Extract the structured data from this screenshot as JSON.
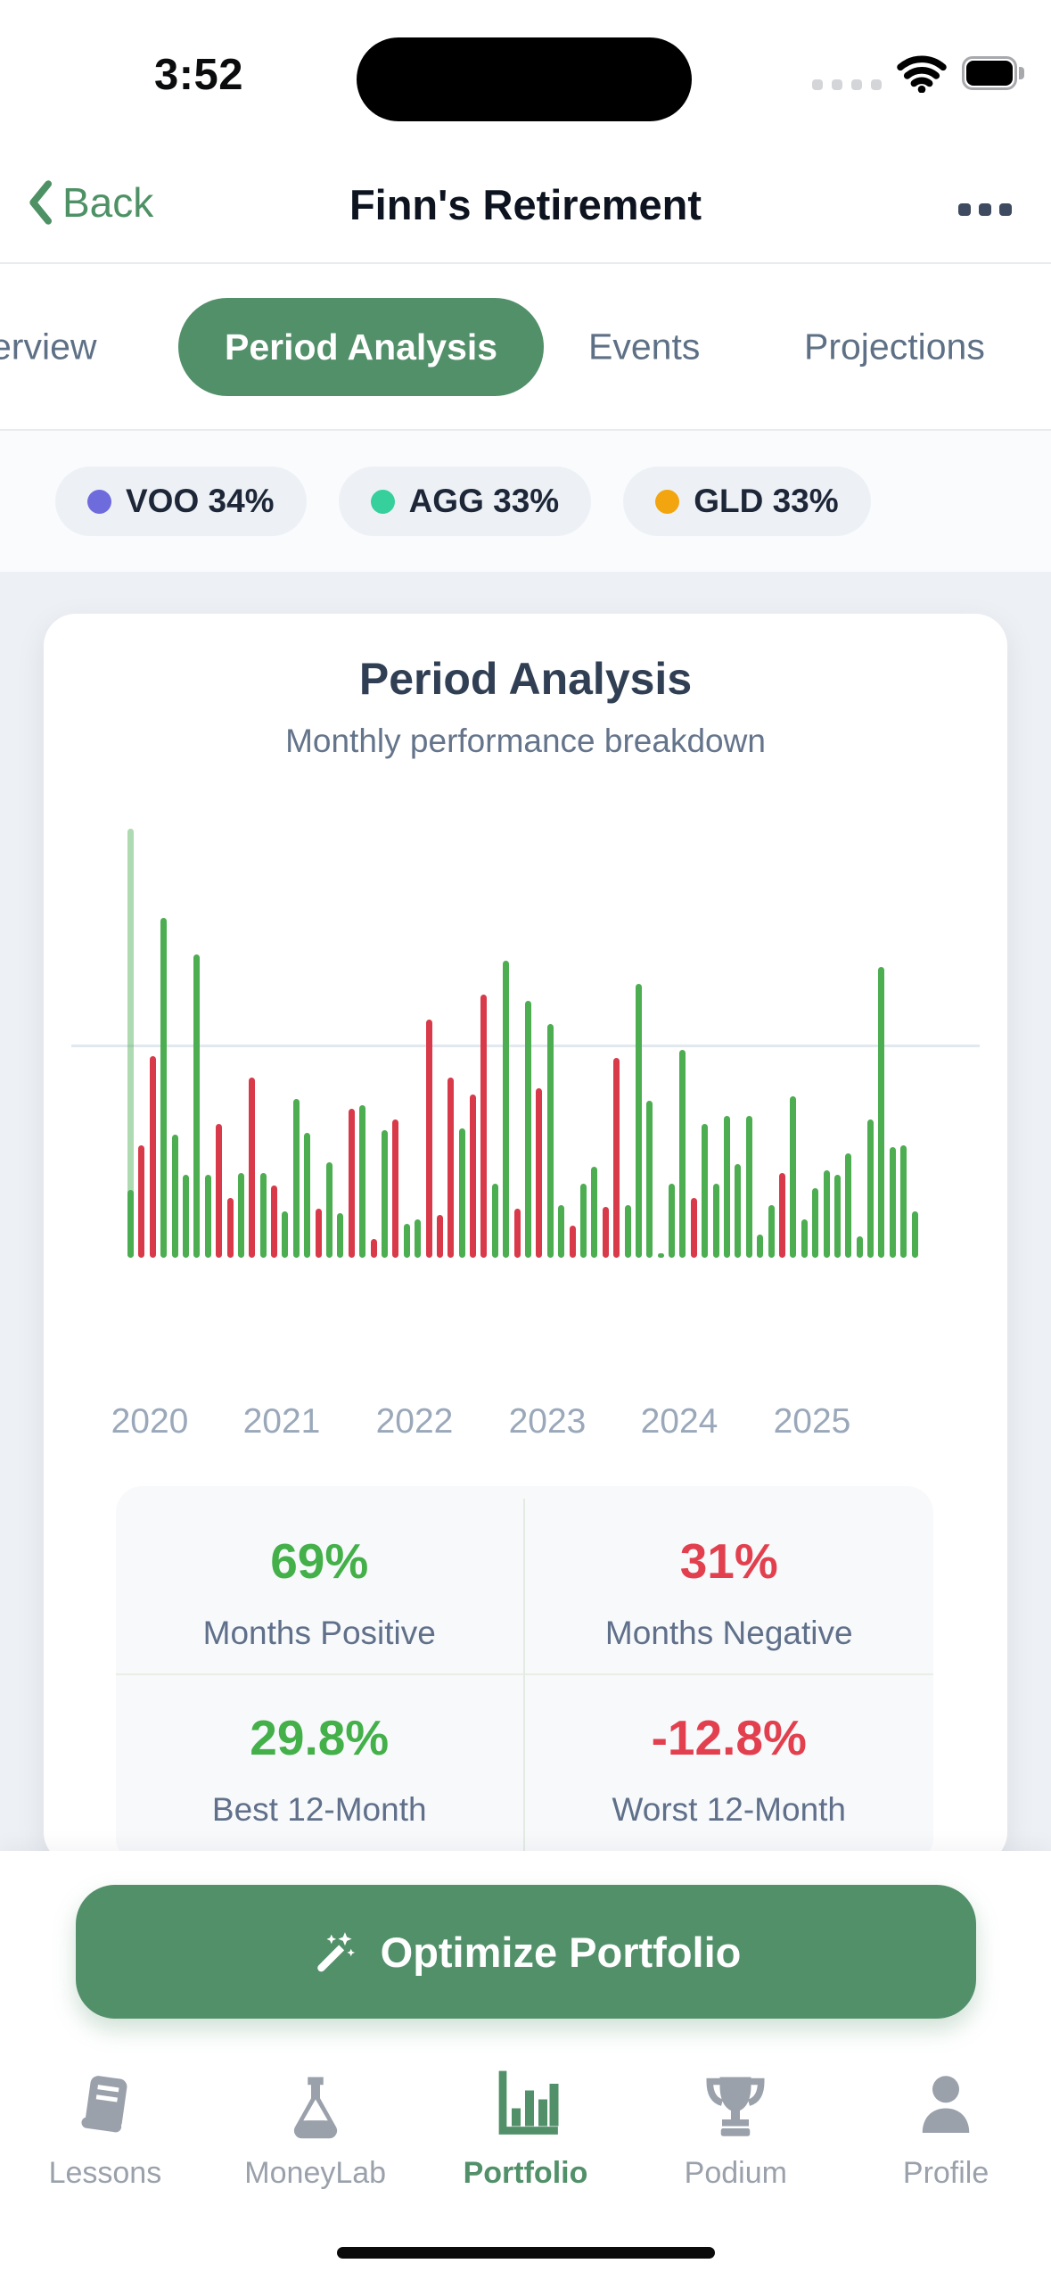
{
  "status_bar": {
    "time": "3:52",
    "cellular_dots": 4
  },
  "nav_bar": {
    "back_label": "Back",
    "title": "Finn's Retirement"
  },
  "tabs": [
    {
      "label": "erview",
      "active": false
    },
    {
      "label": "Period Analysis",
      "active": true
    },
    {
      "label": "Events",
      "active": false
    },
    {
      "label": "Projections",
      "active": false
    }
  ],
  "legend": [
    {
      "label": "VOO 34%",
      "color": "#6e6bdc"
    },
    {
      "label": "AGG 33%",
      "color": "#35d09b"
    },
    {
      "label": "GLD 33%",
      "color": "#f2a50e"
    }
  ],
  "chart_data": {
    "type": "bar",
    "title": "Period Analysis",
    "subtitle": "Monthly performance breakdown",
    "x_labels": [
      "2020",
      "2021",
      "2022",
      "2023",
      "2024",
      "2025"
    ],
    "months_per_tick": 12,
    "y_unit": "monthly return %, sign shown by color (no numeric axis labels on screen)",
    "baseline": 0,
    "gridline_value": 10,
    "bar_colors": {
      "positive": "#4cad51",
      "negative": "#d93a4a"
    },
    "ghost_bar": {
      "index": 0,
      "value": 20.2,
      "opacity": 0.45
    },
    "values": [
      3.2,
      -5.3,
      -9.5,
      16,
      5.8,
      3.9,
      14.3,
      3.9,
      -6.3,
      -2.8,
      4,
      -8.5,
      4,
      -3.4,
      2.2,
      7.5,
      5.9,
      -2.3,
      4.5,
      2.1,
      -7,
      7.2,
      -0.9,
      6,
      -6.5,
      1.6,
      1.8,
      -11.2,
      -2,
      -8.5,
      6.1,
      -7.7,
      -12.4,
      3.5,
      14,
      -2.3,
      12.1,
      -8,
      11,
      2.5,
      -1.5,
      3.5,
      4.3,
      -2.4,
      -9.4,
      2.5,
      12.9,
      7.4,
      0.2,
      3.5,
      9.8,
      -2.8,
      6.3,
      3.5,
      6.7,
      4.4,
      6.7,
      1.1,
      2.5,
      -4,
      7.6,
      1.8,
      3.3,
      4.1,
      3.9,
      4.9,
      1,
      6.5,
      13.7,
      5.2,
      5.3,
      2.2
    ]
  },
  "stats": [
    {
      "value": "69%",
      "label": "Months Positive",
      "color": "#43b049"
    },
    {
      "value": "31%",
      "label": "Months Negative",
      "color": "#e2404f"
    },
    {
      "value": "29.8%",
      "label": "Best 12-Month",
      "color": "#43b049"
    },
    {
      "value": "-12.8%",
      "label": "Worst 12-Month",
      "color": "#e2404f"
    }
  ],
  "cta": {
    "label": "Optimize Portfolio",
    "icon": "magic-wand"
  },
  "bottom_nav": {
    "active_color": "#529069",
    "inactive_color": "#9aa1ab",
    "items": [
      {
        "label": "Lessons",
        "icon": "book",
        "active": false
      },
      {
        "label": "MoneyLab",
        "icon": "flask",
        "active": false
      },
      {
        "label": "Portfolio",
        "icon": "bar-chart",
        "active": true
      },
      {
        "label": "Podium",
        "icon": "trophy",
        "active": false
      },
      {
        "label": "Profile",
        "icon": "person",
        "active": false
      }
    ]
  }
}
